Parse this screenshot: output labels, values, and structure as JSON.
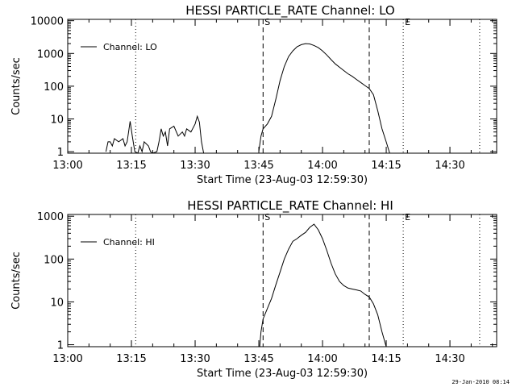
{
  "footer": {
    "timestamp": "29-Jan-2010 08:14"
  },
  "chart_data": [
    {
      "type": "line",
      "title": "HESSI PARTICLE_RATE Channel: LO",
      "xlabel": "Start Time (23-Aug-03 12:59:30)",
      "ylabel": "Counts/sec",
      "yscale": "log",
      "xlim": [
        "13:00",
        "14:41"
      ],
      "ylim": [
        0.9,
        11000
      ],
      "x_ticks": [
        "13:00",
        "13:15",
        "13:30",
        "13:45",
        "14:00",
        "14:15",
        "14:30"
      ],
      "y_ticks": [
        "1",
        "10",
        "100",
        "1000",
        "10000"
      ],
      "legend_position": "top-left",
      "markers": [
        {
          "time": "13:16",
          "style": "dotted",
          "label": ""
        },
        {
          "time": "13:46",
          "style": "dashed",
          "label": "S"
        },
        {
          "time": "14:11",
          "style": "dashed",
          "label": ""
        },
        {
          "time": "14:19",
          "style": "dotted",
          "label": "E"
        },
        {
          "time": "14:37",
          "style": "dotted",
          "label": ""
        }
      ],
      "series": [
        {
          "name": "Channel: LO",
          "segments": [
            [
              [
                "13:09",
                1
              ],
              [
                "13:09.5",
                2
              ],
              [
                "13:10",
                2
              ],
              [
                "13:10.5",
                1.5
              ],
              [
                "13:11",
                2.5
              ],
              [
                "13:12",
                2
              ],
              [
                "13:13",
                2.5
              ],
              [
                "13:13.5",
                1.5
              ],
              [
                "13:14",
                2
              ],
              [
                "13:14.7",
                8.5
              ],
              [
                "13:15.2",
                3
              ],
              [
                "13:15.8",
                1
              ],
              [
                "13:16.5",
                0.85
              ],
              [
                "13:17",
                1.5
              ],
              [
                "13:17.5",
                1
              ],
              [
                "13:18",
                2
              ],
              [
                "13:19",
                1.5
              ],
              [
                "13:19.5",
                1
              ],
              [
                "13:20",
                0.9
              ],
              [
                "13:21",
                1
              ],
              [
                "13:21.5",
                2
              ],
              [
                "13:22",
                5
              ],
              [
                "13:22.5",
                3
              ],
              [
                "13:23",
                4
              ],
              [
                "13:23.5",
                1.5
              ],
              [
                "13:24",
                5
              ],
              [
                "13:25",
                6
              ],
              [
                "13:26",
                3
              ],
              [
                "13:27",
                4
              ],
              [
                "13:27.5",
                3
              ],
              [
                "13:28",
                5
              ],
              [
                "13:29",
                4
              ],
              [
                "13:30",
                7
              ],
              [
                "13:30.5",
                12
              ],
              [
                "13:31",
                8
              ],
              [
                "13:31.5",
                2
              ],
              [
                "13:32",
                0.85
              ]
            ],
            [
              [
                "13:45",
                1
              ],
              [
                "13:45.5",
                3
              ],
              [
                "13:46",
                5
              ],
              [
                "13:47",
                7
              ],
              [
                "13:48",
                12
              ],
              [
                "13:49",
                40
              ],
              [
                "13:50",
                150
              ],
              [
                "13:51",
                400
              ],
              [
                "13:52",
                800
              ],
              [
                "13:53",
                1200
              ],
              [
                "13:54",
                1600
              ],
              [
                "13:55",
                1850
              ],
              [
                "13:56",
                2000
              ],
              [
                "13:57",
                1950
              ],
              [
                "13:58",
                1750
              ],
              [
                "13:59",
                1500
              ],
              [
                "14:00",
                1200
              ],
              [
                "14:01",
                900
              ],
              [
                "14:02",
                650
              ],
              [
                "14:03",
                480
              ],
              [
                "14:04",
                380
              ],
              [
                "14:05",
                300
              ],
              [
                "14:06",
                240
              ],
              [
                "14:07",
                200
              ],
              [
                "14:08",
                160
              ],
              [
                "14:09",
                130
              ],
              [
                "14:10",
                105
              ],
              [
                "14:11",
                85
              ],
              [
                "14:12",
                55
              ],
              [
                "14:13",
                18
              ],
              [
                "14:14",
                5
              ],
              [
                "14:15",
                2
              ],
              [
                "14:15.8",
                0.9
              ]
            ]
          ]
        }
      ]
    },
    {
      "type": "line",
      "title": "HESSI PARTICLE_RATE Channel: HI",
      "xlabel": "Start Time (23-Aug-03 12:59:30)",
      "ylabel": "Counts/sec",
      "yscale": "log",
      "xlim": [
        "13:00",
        "14:41"
      ],
      "ylim": [
        0.9,
        1100
      ],
      "x_ticks": [
        "13:00",
        "13:15",
        "13:30",
        "13:45",
        "14:00",
        "14:15",
        "14:30"
      ],
      "y_ticks": [
        "1",
        "10",
        "100",
        "1000"
      ],
      "legend_position": "top-left",
      "markers": [
        {
          "time": "13:16",
          "style": "dotted",
          "label": ""
        },
        {
          "time": "13:46",
          "style": "dashed",
          "label": "S"
        },
        {
          "time": "14:11",
          "style": "dashed",
          "label": ""
        },
        {
          "time": "14:19",
          "style": "dotted",
          "label": "E"
        },
        {
          "time": "14:37",
          "style": "dotted",
          "label": ""
        }
      ],
      "series": [
        {
          "name": "Channel: HI",
          "segments": [
            [
              [
                "13:45.2",
                0.9
              ],
              [
                "13:45.5",
                2
              ],
              [
                "13:46",
                4
              ],
              [
                "13:47",
                7
              ],
              [
                "13:48",
                12
              ],
              [
                "13:49",
                25
              ],
              [
                "13:50",
                50
              ],
              [
                "13:51",
                100
              ],
              [
                "13:52",
                170
              ],
              [
                "13:53",
                260
              ],
              [
                "13:54",
                300
              ],
              [
                "13:55",
                360
              ],
              [
                "13:56",
                420
              ],
              [
                "13:57",
                550
              ],
              [
                "13:58",
                650
              ],
              [
                "13:59",
                480
              ],
              [
                "14:00",
                300
              ],
              [
                "14:01",
                160
              ],
              [
                "14:02",
                80
              ],
              [
                "14:03",
                45
              ],
              [
                "14:04",
                30
              ],
              [
                "14:05",
                24
              ],
              [
                "14:06",
                21
              ],
              [
                "14:07",
                20
              ],
              [
                "14:08",
                19
              ],
              [
                "14:09",
                18
              ],
              [
                "14:10",
                15
              ],
              [
                "14:11",
                13
              ],
              [
                "14:12",
                9
              ],
              [
                "14:13",
                5
              ],
              [
                "14:14",
                2
              ],
              [
                "14:15",
                0.9
              ]
            ]
          ]
        }
      ]
    }
  ]
}
